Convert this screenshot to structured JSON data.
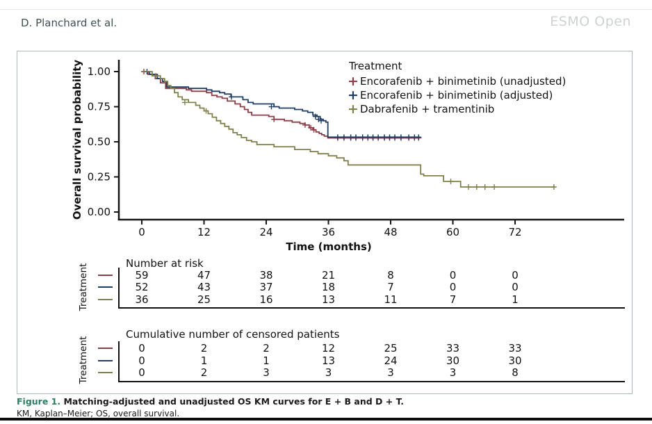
{
  "header": {
    "authors": "D. Planchard et al.",
    "journal": "ESMO Open"
  },
  "caption": {
    "label": "Figure 1.",
    "title": "Matching-adjusted and unadjusted OS KM curves for E + B and D + T.",
    "footnote": "KM, Kaplan–Meier; OS, overall survival."
  },
  "chart_data": {
    "type": "line",
    "subtype": "kaplan-meier-step",
    "xlabel": "Time (months)",
    "ylabel": "Overall survival probability",
    "legend_title": "Treatment",
    "row_axis_label": "Treatment",
    "xticks": [
      0,
      12,
      24,
      36,
      48,
      60,
      72
    ],
    "yticks": [
      {
        "v": 1.0,
        "label": "1.00"
      },
      {
        "v": 0.75,
        "label": "0.75"
      },
      {
        "v": 0.5,
        "label": "0.50"
      },
      {
        "v": 0.25,
        "label": "0.25"
      },
      {
        "v": 0.0,
        "label": "0.00"
      }
    ],
    "xlim": [
      0,
      93
    ],
    "ylim": [
      0,
      1.0
    ],
    "grid": false,
    "legend_position": "top-right-inside",
    "axis_color": "#151515",
    "frame_color": "#a9bcb8",
    "series": [
      {
        "name": "Encorafenib + binimetinib (unadjusted)",
        "color": "#8e3b45",
        "end": 53.6,
        "steps": [
          [
            0,
            1.0
          ],
          [
            1.2,
            0.98
          ],
          [
            2.6,
            0.95
          ],
          [
            3.6,
            0.92
          ],
          [
            4.6,
            0.88
          ],
          [
            8.6,
            0.87
          ],
          [
            9.6,
            0.86
          ],
          [
            12.5,
            0.85
          ],
          [
            13.5,
            0.83
          ],
          [
            14.5,
            0.82
          ],
          [
            15.5,
            0.81
          ],
          [
            16.5,
            0.79
          ],
          [
            18,
            0.77
          ],
          [
            19,
            0.75
          ],
          [
            19.8,
            0.73
          ],
          [
            20.5,
            0.71
          ],
          [
            21.2,
            0.69
          ],
          [
            24.5,
            0.68
          ],
          [
            25.5,
            0.66
          ],
          [
            27.5,
            0.65
          ],
          [
            29,
            0.64
          ],
          [
            30.5,
            0.63
          ],
          [
            31.5,
            0.62
          ],
          [
            32.3,
            0.6
          ],
          [
            33,
            0.585
          ],
          [
            33.6,
            0.57
          ],
          [
            34.2,
            0.56
          ],
          [
            34.7,
            0.55
          ],
          [
            35.2,
            0.54
          ],
          [
            35.9,
            0.527
          ]
        ],
        "censors": [
          [
            0.4,
            1.0
          ],
          [
            25.5,
            0.66
          ],
          [
            31.5,
            0.62
          ],
          [
            32.6,
            0.6
          ],
          [
            33.2,
            0.585
          ],
          [
            37.8,
            0.527
          ],
          [
            39,
            0.527
          ],
          [
            40.3,
            0.527
          ],
          [
            41.3,
            0.527
          ],
          [
            42.6,
            0.527
          ],
          [
            43.6,
            0.527
          ],
          [
            44.6,
            0.527
          ],
          [
            45.6,
            0.527
          ],
          [
            46.8,
            0.527
          ],
          [
            47.8,
            0.527
          ],
          [
            48.8,
            0.527
          ],
          [
            50,
            0.527
          ],
          [
            51.5,
            0.527
          ],
          [
            52.6,
            0.527
          ],
          [
            53.4,
            0.527
          ]
        ]
      },
      {
        "name": "Encorafenib + binimetinib (adjusted)",
        "color": "#1f3d63",
        "end": 53.6,
        "steps": [
          [
            0,
            1.0
          ],
          [
            1.5,
            0.98
          ],
          [
            3,
            0.95
          ],
          [
            4,
            0.93
          ],
          [
            4.8,
            0.89
          ],
          [
            9,
            0.88
          ],
          [
            12.5,
            0.87
          ],
          [
            13.5,
            0.86
          ],
          [
            15,
            0.85
          ],
          [
            16,
            0.84
          ],
          [
            17.2,
            0.82
          ],
          [
            19.5,
            0.8
          ],
          [
            20.5,
            0.78
          ],
          [
            21.5,
            0.77
          ],
          [
            25.5,
            0.75
          ],
          [
            26.5,
            0.74
          ],
          [
            29.5,
            0.73
          ],
          [
            31,
            0.72
          ],
          [
            32,
            0.71
          ],
          [
            33,
            0.69
          ],
          [
            33.8,
            0.68
          ],
          [
            34.4,
            0.66
          ],
          [
            35,
            0.65
          ],
          [
            35.5,
            0.64
          ],
          [
            35.9,
            0.533
          ]
        ],
        "censors": [
          [
            1.0,
            1.0
          ],
          [
            17.3,
            0.82
          ],
          [
            25,
            0.75
          ],
          [
            33.5,
            0.68
          ],
          [
            34.1,
            0.66
          ],
          [
            34.6,
            0.65
          ],
          [
            37.8,
            0.533
          ],
          [
            39,
            0.533
          ],
          [
            40.3,
            0.533
          ],
          [
            41.3,
            0.533
          ],
          [
            42.6,
            0.533
          ],
          [
            43.6,
            0.533
          ],
          [
            44.6,
            0.533
          ],
          [
            45.6,
            0.533
          ],
          [
            46.8,
            0.533
          ],
          [
            47.8,
            0.533
          ],
          [
            48.8,
            0.533
          ],
          [
            50,
            0.533
          ],
          [
            51.5,
            0.533
          ],
          [
            52.6,
            0.533
          ],
          [
            53.4,
            0.533
          ]
        ]
      },
      {
        "name": "Dabrafenib + tramentinib",
        "color": "#7f814a",
        "end": 79.8,
        "steps": [
          [
            0,
            1.0
          ],
          [
            2,
            0.97
          ],
          [
            3.6,
            0.95
          ],
          [
            4.4,
            0.93
          ],
          [
            5,
            0.9
          ],
          [
            5.6,
            0.88
          ],
          [
            6.3,
            0.85
          ],
          [
            7,
            0.82
          ],
          [
            7.8,
            0.8
          ],
          [
            9,
            0.78
          ],
          [
            10.4,
            0.76
          ],
          [
            11.2,
            0.74
          ],
          [
            12,
            0.72
          ],
          [
            12.8,
            0.7
          ],
          [
            13.6,
            0.675
          ],
          [
            14.4,
            0.65
          ],
          [
            15.2,
            0.63
          ],
          [
            16,
            0.61
          ],
          [
            16.8,
            0.59
          ],
          [
            17.6,
            0.565
          ],
          [
            18.4,
            0.55
          ],
          [
            19.2,
            0.53
          ],
          [
            20.2,
            0.51
          ],
          [
            21.2,
            0.5
          ],
          [
            22.2,
            0.48
          ],
          [
            25.5,
            0.465
          ],
          [
            29.5,
            0.445
          ],
          [
            32.5,
            0.43
          ],
          [
            34,
            0.415
          ],
          [
            36,
            0.4
          ],
          [
            37.6,
            0.385
          ],
          [
            39,
            0.365
          ],
          [
            39.8,
            0.335
          ],
          [
            53.8,
            0.27
          ],
          [
            54.4,
            0.258
          ],
          [
            58.2,
            0.218
          ],
          [
            61.5,
            0.178
          ]
        ],
        "censors": [
          [
            2.7,
            0.97
          ],
          [
            8.3,
            0.78
          ],
          [
            12.4,
            0.72
          ],
          [
            59.6,
            0.218
          ],
          [
            63,
            0.178
          ],
          [
            64.6,
            0.178
          ],
          [
            66.2,
            0.178
          ],
          [
            68,
            0.178
          ],
          [
            79.5,
            0.178
          ]
        ]
      }
    ],
    "risk_table": {
      "title": "Number at risk",
      "rows": [
        [
          59,
          47,
          38,
          21,
          8,
          0,
          0
        ],
        [
          52,
          43,
          37,
          18,
          7,
          0,
          0
        ],
        [
          36,
          25,
          16,
          13,
          11,
          7,
          1
        ]
      ]
    },
    "censored_table": {
      "title": "Cumulative number of censored patients",
      "rows": [
        [
          0,
          2,
          2,
          12,
          25,
          33,
          33
        ],
        [
          0,
          1,
          1,
          13,
          24,
          30,
          30
        ],
        [
          0,
          2,
          3,
          3,
          3,
          3,
          8
        ]
      ]
    }
  }
}
